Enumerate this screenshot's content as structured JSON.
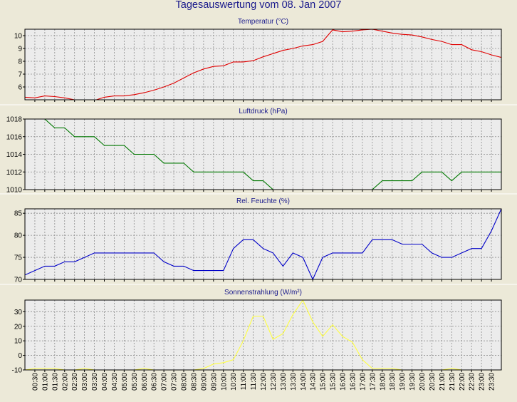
{
  "page_title": "Tagesauswertung vom 08. Jan 2007",
  "x_ticks": [
    "00:30",
    "01:00",
    "01:30",
    "02:00",
    "02:30",
    "03:00",
    "03:30",
    "04:00",
    "04:30",
    "05:00",
    "05:30",
    "06:00",
    "06:30",
    "07:00",
    "07:30",
    "08:00",
    "08:30",
    "09:00",
    "09:30",
    "10:00",
    "10:30",
    "11:00",
    "11:30",
    "12:00",
    "12:30",
    "13:00",
    "13:30",
    "14:00",
    "14:30",
    "15:00",
    "15:30",
    "16:00",
    "16:30",
    "17:00",
    "17:30",
    "18:00",
    "18:30",
    "19:00",
    "19:30",
    "20:00",
    "20:30",
    "21:00",
    "21:30",
    "22:00",
    "22:30",
    "23:00",
    "23:30"
  ],
  "colors": {
    "background": "#ece9d8",
    "plot": "#ececec",
    "grid": "#8c8c8c",
    "title_text": "#1a1a8c"
  },
  "chart_data": [
    {
      "type": "line",
      "title": "Temperatur (°C)",
      "ylim": [
        5,
        10.5
      ],
      "yticks": [
        "6",
        "7",
        "8",
        "9",
        "10"
      ],
      "ytick_values": [
        6,
        7,
        8,
        9,
        10
      ],
      "series": [
        {
          "color": "#e00000",
          "x": [
            "00:00",
            "00:30",
            "01:00",
            "01:30",
            "02:00",
            "02:30",
            "03:00",
            "03:30",
            "04:00",
            "04:30",
            "05:00",
            "05:30",
            "06:00",
            "06:30",
            "07:00",
            "07:30",
            "08:00",
            "08:30",
            "09:00",
            "09:30",
            "10:00",
            "10:30",
            "11:00",
            "11:30",
            "12:00",
            "12:30",
            "13:00",
            "13:30",
            "14:00",
            "14:30",
            "15:00",
            "15:30",
            "16:00",
            "16:30",
            "17:00",
            "17:30",
            "18:00",
            "18:30",
            "19:00",
            "19:30",
            "20:00",
            "20:30",
            "21:00",
            "21:30",
            "22:00",
            "22:30",
            "23:00",
            "23:30",
            "24:00"
          ],
          "values": [
            5.2,
            5.15,
            5.3,
            5.25,
            5.15,
            5.0,
            5.0,
            4.95,
            5.2,
            5.3,
            5.3,
            5.4,
            5.55,
            5.75,
            6.0,
            6.3,
            6.7,
            7.1,
            7.4,
            7.6,
            7.65,
            7.95,
            7.95,
            8.05,
            8.35,
            8.6,
            8.85,
            9.0,
            9.2,
            9.3,
            9.55,
            10.45,
            10.3,
            10.35,
            10.45,
            10.5,
            10.35,
            10.2,
            10.1,
            10.05,
            9.9,
            9.7,
            9.55,
            9.3,
            9.3,
            8.9,
            8.75,
            8.5,
            8.3
          ]
        }
      ]
    },
    {
      "type": "line",
      "title": "Luftdruck (hPa)",
      "ylim": [
        1010,
        1018
      ],
      "yticks": [
        "1010",
        "1012",
        "1014",
        "1016",
        "1018"
      ],
      "ytick_values": [
        1010,
        1012,
        1014,
        1016,
        1018
      ],
      "series": [
        {
          "color": "#007800",
          "x": [
            "00:00",
            "00:30",
            "01:00",
            "01:30",
            "02:00",
            "02:30",
            "03:00",
            "03:30",
            "04:00",
            "04:30",
            "05:00",
            "05:30",
            "06:00",
            "06:30",
            "07:00",
            "07:30",
            "08:00",
            "08:30",
            "09:00",
            "09:30",
            "10:00",
            "10:30",
            "11:00",
            "11:30",
            "12:00",
            "12:30",
            "13:00",
            "13:30",
            "14:00",
            "14:30",
            "15:00",
            "15:30",
            "16:00",
            "16:30",
            "17:00",
            "17:30",
            "18:00",
            "18:30",
            "19:00",
            "19:30",
            "20:00",
            "20:30",
            "21:00",
            "21:30",
            "22:00",
            "22:30",
            "23:00",
            "23:30",
            "24:00"
          ],
          "values": [
            1019,
            1019,
            1018,
            1017,
            1017,
            1016,
            1016,
            1016,
            1015,
            1015,
            1015,
            1014,
            1014,
            1014,
            1013,
            1013,
            1013,
            1012,
            1012,
            1012,
            1012,
            1012,
            1012,
            1011,
            1011,
            1010,
            1009,
            1009,
            1009,
            1009,
            1009,
            1009,
            1009,
            1009,
            1009,
            1010,
            1011,
            1011,
            1011,
            1011,
            1012,
            1012,
            1012,
            1011,
            1012,
            1012,
            1012,
            1012,
            1012
          ]
        }
      ]
    },
    {
      "type": "line",
      "title": "Rel. Feuchte (%)",
      "ylim": [
        70,
        86
      ],
      "yticks": [
        "70",
        "75",
        "80",
        "85"
      ],
      "ytick_values": [
        70,
        75,
        80,
        85
      ],
      "series": [
        {
          "color": "#0000c8",
          "x": [
            "00:00",
            "00:30",
            "01:00",
            "01:30",
            "02:00",
            "02:30",
            "03:00",
            "03:30",
            "04:00",
            "04:30",
            "05:00",
            "05:30",
            "06:00",
            "06:30",
            "07:00",
            "07:30",
            "08:00",
            "08:30",
            "09:00",
            "09:30",
            "10:00",
            "10:30",
            "11:00",
            "11:30",
            "12:00",
            "12:30",
            "13:00",
            "13:30",
            "14:00",
            "14:30",
            "15:00",
            "15:30",
            "16:00",
            "16:30",
            "17:00",
            "17:30",
            "18:00",
            "18:30",
            "19:00",
            "19:30",
            "20:00",
            "20:30",
            "21:00",
            "21:30",
            "22:00",
            "22:30",
            "23:00",
            "23:30",
            "24:00"
          ],
          "values": [
            71,
            72,
            73,
            73,
            74,
            74,
            75,
            76,
            76,
            76,
            76,
            76,
            76,
            76,
            74,
            73,
            73,
            72,
            72,
            72,
            72,
            77,
            79,
            79,
            77,
            76,
            73,
            76,
            75,
            70,
            75,
            76,
            76,
            76,
            76,
            79,
            79,
            79,
            78,
            78,
            78,
            76,
            75,
            75,
            76,
            77,
            77,
            81,
            86
          ]
        }
      ]
    },
    {
      "type": "line",
      "title": "Sonnenstrahlung (W/m²)",
      "ylim": [
        -10,
        38
      ],
      "yticks": [
        "-10",
        "0",
        "10",
        "20",
        "30"
      ],
      "ytick_values": [
        -10,
        0,
        10,
        20,
        30
      ],
      "series": [
        {
          "color": "#ffff40",
          "x": [
            "00:00",
            "00:30",
            "01:00",
            "01:30",
            "02:00",
            "02:30",
            "03:00",
            "03:30",
            "04:00",
            "04:30",
            "05:00",
            "05:30",
            "06:00",
            "06:30",
            "07:00",
            "07:30",
            "08:00",
            "08:30",
            "09:00",
            "09:30",
            "10:00",
            "10:30",
            "11:00",
            "11:30",
            "12:00",
            "12:30",
            "13:00",
            "13:30",
            "14:00",
            "14:30",
            "15:00",
            "15:30",
            "16:00",
            "16:30",
            "17:00",
            "17:30",
            "18:00",
            "18:30",
            "19:00",
            "19:30",
            "20:00",
            "20:30",
            "21:00",
            "21:30",
            "22:00",
            "22:30",
            "23:00",
            "23:30",
            "24:00"
          ],
          "values": [
            -10,
            -9,
            -9,
            -9,
            -10,
            -10,
            -9,
            -10,
            -10,
            -10,
            -10,
            -10,
            -9,
            -10,
            -10,
            -10,
            -10,
            -10,
            -9,
            -6,
            -5,
            -3,
            10,
            27,
            27,
            11,
            15,
            28,
            38,
            23,
            13,
            21,
            13,
            9,
            -3,
            -9,
            -9,
            -9,
            -10,
            -10,
            -10,
            -10,
            -10,
            -9,
            -10,
            -10,
            -10,
            -10,
            -10
          ]
        }
      ]
    }
  ]
}
